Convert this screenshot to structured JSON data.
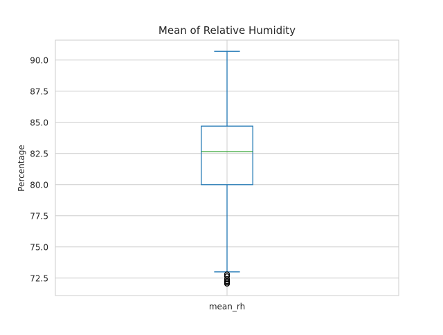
{
  "chart_data": {
    "type": "box",
    "title": "Mean of Relative Humidity",
    "xlabel": "",
    "ylabel": "Percentage",
    "categories": [
      "mean_rh"
    ],
    "ylim": [
      71.1,
      91.6
    ],
    "yticks": [
      72.5,
      75.0,
      77.5,
      80.0,
      82.5,
      85.0,
      87.5,
      90.0
    ],
    "ytick_labels": [
      "72.5",
      "75.0",
      "77.5",
      "80.0",
      "82.5",
      "85.0",
      "87.5",
      "90.0"
    ],
    "grid": true,
    "boxes": [
      {
        "category": "mean_rh",
        "whisker_low": 73.0,
        "q1": 80.0,
        "median": 82.65,
        "q3": 84.7,
        "whisker_high": 90.7,
        "outliers": [
          72.8,
          72.65,
          72.4,
          72.25,
          72.15,
          72.05
        ]
      }
    ],
    "colors": {
      "box": "#1f77b4",
      "median": "#2ca02c",
      "grid": "#cccccc",
      "outlier": "#000000"
    }
  }
}
